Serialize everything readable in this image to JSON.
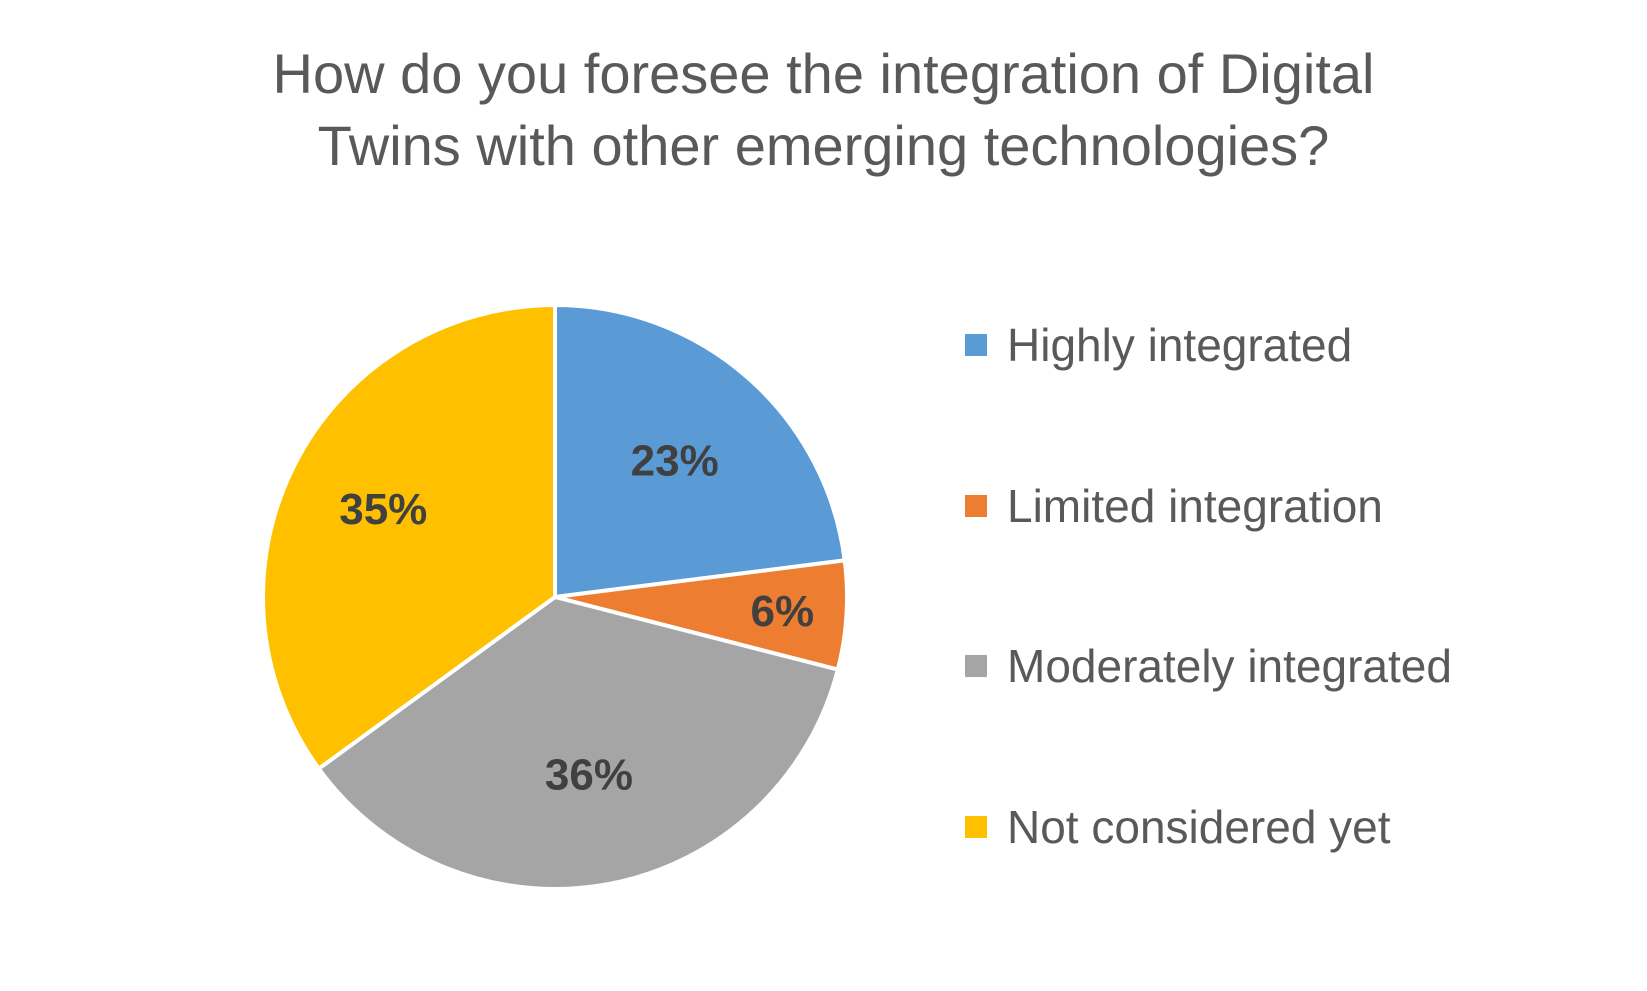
{
  "chart_data": {
    "type": "pie",
    "title": "How do you foresee the integration of Digital Twins with other emerging technologies?",
    "title_lines": [
      "How do you foresee the integration of Digital",
      "Twins with other emerging technologies?"
    ],
    "categories": [
      "Highly integrated",
      "Limited integration",
      "Moderately integrated",
      "Not considered yet"
    ],
    "values": [
      23,
      6,
      36,
      35
    ],
    "labels": [
      "23%",
      "6%",
      "36%",
      "35%"
    ],
    "colors": [
      "#5B9BD5",
      "#ED7D31",
      "#A5A5A5",
      "#FFC000"
    ],
    "legend_position": "right",
    "start_angle_deg": 0,
    "direction": "clockwise"
  }
}
